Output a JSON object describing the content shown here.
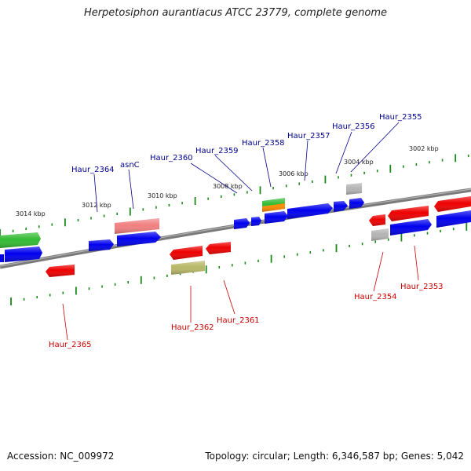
{
  "title": "Herpetosiphon aurantiacus ATCC 23779, complete genome",
  "footer": {
    "accession": "Accession: NC_009972",
    "summary": "Topology: circular; Length: 6,346,587 bp; Genes: 5,042"
  },
  "colors": {
    "backbone": "#808080",
    "tick": "#1a8a1a",
    "forward_label": "#00008b",
    "reverse_label": "#cc0000",
    "gene_blue": "#0000ee",
    "gene_red": "#ee0000",
    "gene_green": "#33bb33",
    "gene_pink": "#f08080",
    "gene_olive": "#b8b868",
    "gene_gray": "#b4b4b4",
    "gene_orange": "#ff8c00"
  },
  "scale_labels": [
    "3014 kbp",
    "3012 kbp",
    "3010 kbp",
    "3008 kbp",
    "3006 kbp",
    "3004 kbp",
    "3002 kbp"
  ],
  "gene_labels": {
    "forward": [
      "Haur_2364",
      "asnC",
      "Haur_2360",
      "Haur_2359",
      "Haur_2358",
      "Haur_2357",
      "Haur_2356",
      "Haur_2355"
    ],
    "reverse": [
      "Haur_2365",
      "Haur_2362",
      "Haur_2361",
      "Haur_2354",
      "Haur_2353"
    ]
  }
}
